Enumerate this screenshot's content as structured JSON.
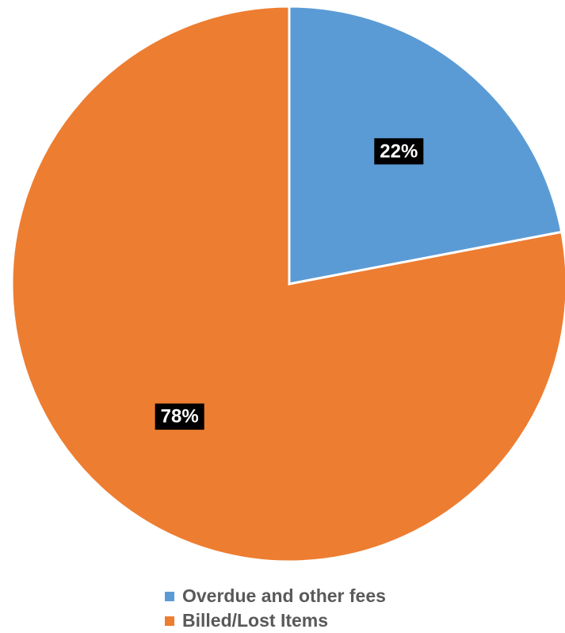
{
  "chart_data": {
    "type": "pie",
    "title": "",
    "categories": [
      "Overdue and other fees",
      "Billed/Lost Items"
    ],
    "values": [
      22,
      78
    ],
    "data_labels": [
      "22%",
      "78%"
    ],
    "colors": [
      "#5b9bd5",
      "#ed7d31"
    ],
    "start_angle_deg": 0,
    "direction": "clockwise",
    "legend_position": "bottom",
    "data_label_style": "white-on-black"
  },
  "legend": {
    "items": [
      {
        "label": "Overdue and other fees",
        "color": "#5b9bd5"
      },
      {
        "label": "Billed/Lost Items",
        "color": "#ed7d31"
      }
    ]
  }
}
